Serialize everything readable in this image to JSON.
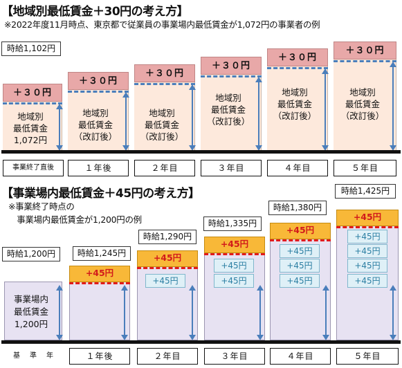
{
  "top": {
    "title": "【地域別最低賃金＋30円の考え方】",
    "note": "※2022年度11月時点、東京都で従業員の事業場内最低賃金が1,072円の事業者の例",
    "callout": "時給1,102円",
    "increase_label": "＋３０円",
    "base_box_lines": [
      "地域別",
      "最低賃金",
      "1,072円"
    ],
    "revised_box_lines": [
      "地域別",
      "最低賃金",
      "（改訂後）"
    ],
    "x_labels": [
      "事業終了直後",
      "１年後",
      "２年目",
      "３年目",
      "４年目",
      "５年目"
    ]
  },
  "bottom": {
    "title": "【事業場内最低賃金＋45円の考え方】",
    "note_lines": [
      "※事業終了時点の",
      "　事業場内最低賃金が1,200円の例"
    ],
    "callouts": [
      "時給1,200円",
      "時給1,245円",
      "時給1,290円",
      "時給1,335円",
      "時給1,380円",
      "時給1,425円"
    ],
    "increase_label": "+45円",
    "base_box_lines": [
      "事業場内",
      "最低賃金",
      "1,200円"
    ],
    "x_labels": [
      "基　準　年",
      "１年後",
      "２年目",
      "３年目",
      "４年目",
      "５年目"
    ]
  },
  "chart_data": {
    "type": "bar",
    "categories": [
      "基準年",
      "１年後",
      "２年目",
      "３年目",
      "４年目",
      "５年目"
    ],
    "values": [
      1200,
      1245,
      1290,
      1335,
      1380,
      1425
    ],
    "title": "【事業場内最低賃金＋45円の考え方】"
  }
}
